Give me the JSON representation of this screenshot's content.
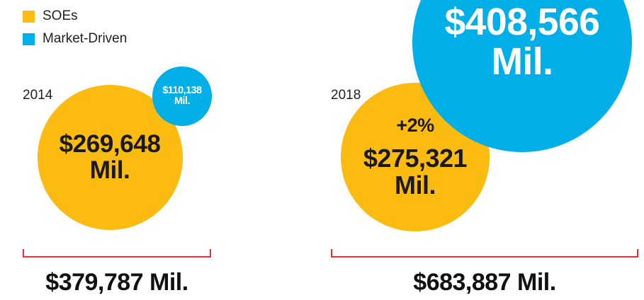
{
  "chart_data": {
    "type": "bubble",
    "categories": [
      "2014",
      "2018"
    ],
    "series": [
      {
        "name": "SOEs",
        "color": "#fbbb10",
        "values": [
          269648,
          275321
        ],
        "value_labels": [
          "$269,648 Mil.",
          "$275,321 Mil."
        ]
      },
      {
        "name": "Market-Driven",
        "color": "#00aee8",
        "values": [
          110138,
          408566
        ],
        "value_labels": [
          "$110,138 Mil.",
          "$408,566 Mil."
        ]
      }
    ],
    "totals": [
      379787,
      683887
    ],
    "total_labels": [
      "$379,787 Mil.",
      "$683,887 Mil."
    ],
    "annotations": [
      {
        "category": "2018",
        "text": "+2%"
      }
    ],
    "legend": "top-left"
  }
}
